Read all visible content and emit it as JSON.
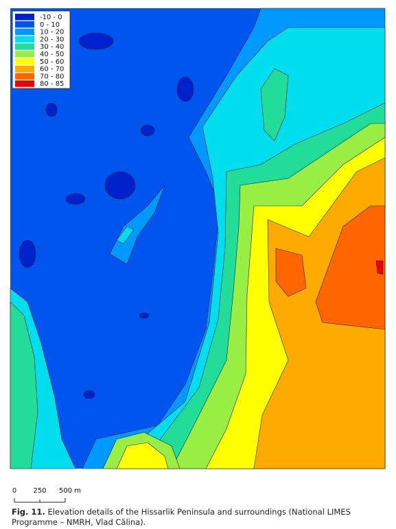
{
  "legend": [
    {
      "label": "-10 - 0",
      "color": "#0022cc"
    },
    {
      "label": "0 - 10",
      "color": "#0055ee"
    },
    {
      "label": "10 - 20",
      "color": "#0099ff"
    },
    {
      "label": "20 - 30",
      "color": "#00dded"
    },
    {
      "label": "30 - 40",
      "color": "#22dd99"
    },
    {
      "label": "40 - 50",
      "color": "#99ee44"
    },
    {
      "label": "50 - 60",
      "color": "#ffff00"
    },
    {
      "label": "60 - 70",
      "color": "#ffaa00"
    },
    {
      "label": "70 - 80",
      "color": "#ff6600"
    },
    {
      "label": "80 - 85",
      "color": "#ee0000"
    }
  ],
  "scale_bar": {
    "labels": [
      "0",
      "250",
      "500 m"
    ]
  },
  "caption": {
    "label": "Fig. 11.",
    "text": "Elevation details of the Hissarlik Peninsula and surroundings (National LIMES Programme – NMRH, Vlad Călina)."
  }
}
